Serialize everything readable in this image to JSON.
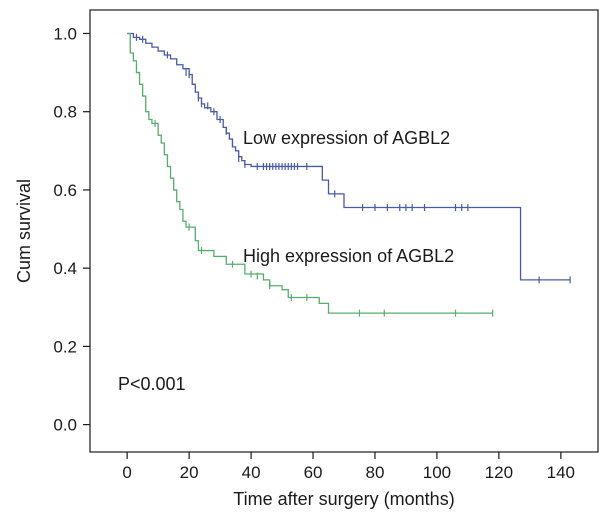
{
  "chart_data": {
    "type": "line",
    "subtype": "kaplan-meier step",
    "title": "",
    "xlabel": "Time after surgery (months)",
    "ylabel": "Cum survival",
    "xlim": [
      -12,
      152
    ],
    "ylim": [
      -0.07,
      1.06
    ],
    "xticks": [
      0,
      20,
      40,
      60,
      80,
      100,
      120,
      140
    ],
    "yticks": [
      0.0,
      0.2,
      0.4,
      0.6,
      0.8,
      1.0
    ],
    "ytick_labels": [
      "0.0",
      "0.2",
      "0.4",
      "0.6",
      "0.8",
      "1.0"
    ],
    "grid": false,
    "legend": "none",
    "annotations": [
      "Low expression of AGBL2",
      "High expression of AGBL2",
      "P<0.001"
    ],
    "series": [
      {
        "name": "Low expression of AGBL2",
        "color": "#4a5aa5",
        "steps": [
          [
            0,
            1.0
          ],
          [
            2,
            0.99
          ],
          [
            4,
            0.985
          ],
          [
            6,
            0.975
          ],
          [
            8,
            0.965
          ],
          [
            10,
            0.955
          ],
          [
            12,
            0.945
          ],
          [
            14,
            0.935
          ],
          [
            16,
            0.92
          ],
          [
            18,
            0.91
          ],
          [
            20,
            0.895
          ],
          [
            21,
            0.87
          ],
          [
            22,
            0.85
          ],
          [
            23,
            0.835
          ],
          [
            24,
            0.82
          ],
          [
            25,
            0.81
          ],
          [
            27,
            0.8
          ],
          [
            29,
            0.78
          ],
          [
            31,
            0.76
          ],
          [
            32,
            0.745
          ],
          [
            33,
            0.73
          ],
          [
            34,
            0.71
          ],
          [
            35,
            0.7
          ],
          [
            36,
            0.685
          ],
          [
            37,
            0.675
          ],
          [
            38,
            0.665
          ],
          [
            40,
            0.66
          ],
          [
            63,
            0.625
          ],
          [
            65,
            0.59
          ],
          [
            70,
            0.555
          ],
          [
            127,
            0.37
          ],
          [
            143,
            0.37
          ]
        ],
        "censored": [
          [
            3,
            0.99
          ],
          [
            5,
            0.985
          ],
          [
            13,
            0.945
          ],
          [
            19,
            0.9
          ],
          [
            20,
            0.895
          ],
          [
            23,
            0.835
          ],
          [
            24,
            0.82
          ],
          [
            26,
            0.815
          ],
          [
            28,
            0.8
          ],
          [
            30,
            0.78
          ],
          [
            32,
            0.75
          ],
          [
            34,
            0.72
          ],
          [
            36,
            0.68
          ],
          [
            38,
            0.665
          ],
          [
            42,
            0.66
          ],
          [
            44,
            0.66
          ],
          [
            45,
            0.66
          ],
          [
            46,
            0.66
          ],
          [
            47,
            0.66
          ],
          [
            48,
            0.66
          ],
          [
            49,
            0.66
          ],
          [
            50,
            0.66
          ],
          [
            51,
            0.66
          ],
          [
            52,
            0.66
          ],
          [
            53,
            0.66
          ],
          [
            54,
            0.66
          ],
          [
            55,
            0.66
          ],
          [
            58,
            0.66
          ],
          [
            67,
            0.59
          ],
          [
            76,
            0.555
          ],
          [
            80,
            0.555
          ],
          [
            84,
            0.555
          ],
          [
            88,
            0.555
          ],
          [
            90,
            0.555
          ],
          [
            92,
            0.555
          ],
          [
            96,
            0.555
          ],
          [
            106,
            0.555
          ],
          [
            108,
            0.555
          ],
          [
            110,
            0.555
          ],
          [
            133,
            0.37
          ],
          [
            143,
            0.37
          ]
        ]
      },
      {
        "name": "High expression of AGBL2",
        "color": "#5aab6e",
        "steps": [
          [
            0,
            1.0
          ],
          [
            1,
            0.95
          ],
          [
            2,
            0.93
          ],
          [
            3,
            0.9
          ],
          [
            4,
            0.87
          ],
          [
            5,
            0.84
          ],
          [
            6,
            0.8
          ],
          [
            7,
            0.78
          ],
          [
            8,
            0.77
          ],
          [
            10,
            0.74
          ],
          [
            11,
            0.72
          ],
          [
            12,
            0.69
          ],
          [
            13,
            0.66
          ],
          [
            14,
            0.63
          ],
          [
            15,
            0.6
          ],
          [
            16,
            0.57
          ],
          [
            17,
            0.55
          ],
          [
            18,
            0.52
          ],
          [
            19,
            0.505
          ],
          [
            22,
            0.47
          ],
          [
            23,
            0.445
          ],
          [
            28,
            0.43
          ],
          [
            32,
            0.41
          ],
          [
            38,
            0.385
          ],
          [
            44,
            0.37
          ],
          [
            46,
            0.355
          ],
          [
            50,
            0.345
          ],
          [
            52,
            0.325
          ],
          [
            62,
            0.31
          ],
          [
            65,
            0.285
          ],
          [
            118,
            0.285
          ]
        ],
        "censored": [
          [
            9,
            0.77
          ],
          [
            20,
            0.505
          ],
          [
            24,
            0.445
          ],
          [
            34,
            0.41
          ],
          [
            40,
            0.385
          ],
          [
            42,
            0.38
          ],
          [
            46,
            0.355
          ],
          [
            53,
            0.325
          ],
          [
            58,
            0.325
          ],
          [
            75,
            0.285
          ],
          [
            83,
            0.285
          ],
          [
            106,
            0.285
          ],
          [
            118,
            0.285
          ]
        ]
      }
    ]
  }
}
